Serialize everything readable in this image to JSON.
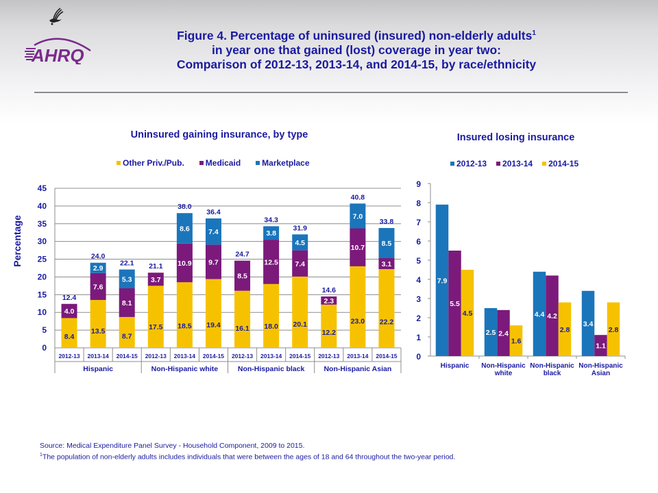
{
  "header": {
    "logo_text": "AHRQ",
    "title_line1": "Figure 4. Percentage of uninsured (insured) non-elderly adults",
    "title_sup": "1",
    "title_line2": "in year one that gained (lost) coverage in year two:",
    "title_line3": "Comparison of 2012-13, 2013-14, and 2014-15, by race/ethnicity"
  },
  "colors": {
    "other": "#f6c200",
    "medicaid": "#7b1a7b",
    "marketplace": "#1b75bb",
    "text": "#1a1aa0"
  },
  "chart_data": [
    {
      "type": "bar",
      "stacked": true,
      "title": "Uninsured gaining insurance, by type",
      "ylabel": "Percentage",
      "xlabel": "",
      "ylim": [
        0,
        45
      ],
      "yticks": [
        0,
        5,
        10,
        15,
        20,
        25,
        30,
        35,
        40,
        45
      ],
      "grid": true,
      "legend_position": "top",
      "groups": [
        "Hispanic",
        "Non-Hispanic white",
        "Non-Hispanic black",
        "Non-Hispanic Asian"
      ],
      "categories": [
        "2012-13",
        "2013-14",
        "2014-15"
      ],
      "series": [
        {
          "name": "Other Priv./Pub.",
          "key": "other",
          "values": [
            8.4,
            13.5,
            8.7,
            17.5,
            18.5,
            19.4,
            16.1,
            18.0,
            20.1,
            12.2,
            23.0,
            22.2
          ]
        },
        {
          "name": "Medicaid",
          "key": "medicaid",
          "values": [
            4.0,
            7.6,
            8.1,
            3.7,
            10.9,
            9.7,
            8.5,
            12.5,
            7.4,
            2.3,
            10.7,
            3.1
          ]
        },
        {
          "name": "Marketplace",
          "key": "marketplace",
          "values": [
            null,
            2.9,
            5.3,
            null,
            8.6,
            7.4,
            null,
            3.8,
            4.5,
            null,
            7.0,
            8.5
          ]
        }
      ],
      "totals": [
        "12.4",
        "24.0",
        "22.1",
        "21.1",
        "38.0",
        "36.4",
        "24.7",
        "34.3",
        "31.9",
        "14.6",
        "40.8",
        "33.8"
      ],
      "labels": {
        "other": [
          "8.4",
          "13.5",
          "8.7",
          "17.5",
          "18.5",
          "19.4",
          "16.1",
          "18.0",
          "20.1",
          "12.2",
          "23.0",
          "22.2"
        ],
        "medicaid": [
          "4.0",
          "7.6",
          "8.1",
          "3.7",
          "10.9",
          "9.7",
          "8.5",
          "12.5",
          "7.4",
          "2.3",
          "10.7",
          "3.1"
        ],
        "marketplace": [
          "",
          "2.9",
          "5.3",
          "",
          "8.6",
          "7.4",
          "",
          "3.8",
          "4.5",
          "",
          "7.0",
          "8.5"
        ]
      }
    },
    {
      "type": "bar",
      "stacked": false,
      "title": "Insured losing insurance",
      "xlabel": "",
      "ylabel": "",
      "ylim": [
        0,
        9
      ],
      "yticks": [
        0,
        1,
        2,
        3,
        4,
        5,
        6,
        7,
        8,
        9
      ],
      "grid": false,
      "legend_position": "top",
      "categories": [
        [
          "Hispanic"
        ],
        [
          "Non-Hispanic",
          "white"
        ],
        [
          "Non-Hispanic",
          "black"
        ],
        [
          "Non-Hispanic",
          "Asian"
        ]
      ],
      "series": [
        {
          "name": "2012-13",
          "key": "marketplace",
          "values": [
            7.9,
            2.5,
            4.4,
            3.4
          ],
          "labels": [
            "7.9",
            "2.5",
            "4.4",
            "3.4"
          ]
        },
        {
          "name": "2013-14",
          "key": "medicaid",
          "values": [
            5.5,
            2.4,
            4.2,
            1.1
          ],
          "labels": [
            "5.5",
            "2.4",
            "4.2",
            "1.1"
          ]
        },
        {
          "name": "2014-15",
          "key": "other",
          "values": [
            4.5,
            1.6,
            2.8,
            2.8
          ],
          "labels": [
            "4.5",
            "1.6",
            "2.8",
            "2.8"
          ]
        }
      ]
    }
  ],
  "footnotes": {
    "source": "Source:  Medical Expenditure Panel Survey - Household Component, 2009 to 2015.",
    "note_mark": "1",
    "note": "The population of non-elderly adults includes individuals that were between the ages of 18 and 64 throughout the two-year period."
  }
}
